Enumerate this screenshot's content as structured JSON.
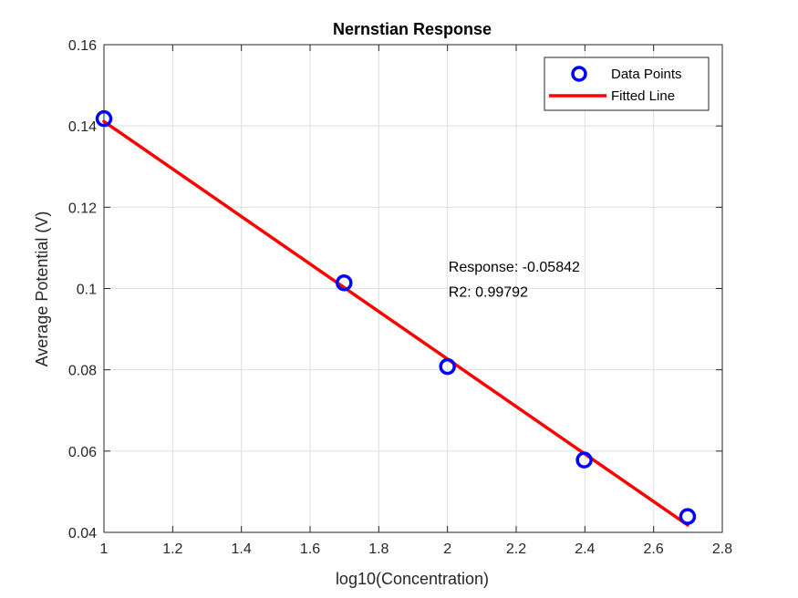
{
  "chart_data": {
    "type": "scatter",
    "title": "Nernstian Response",
    "xlabel": "log10(Concentration)",
    "ylabel": "Average Potential (V)",
    "xlim": [
      1,
      2.8
    ],
    "ylim": [
      0.04,
      0.16
    ],
    "xticks": [
      1,
      1.2,
      1.4,
      1.6,
      1.8,
      2,
      2.2,
      2.4,
      2.6,
      2.8
    ],
    "xtick_labels": [
      "1",
      "1.2",
      "1.4",
      "1.6",
      "1.8",
      "2",
      "2.2",
      "2.4",
      "2.6",
      "2.8"
    ],
    "yticks": [
      0.04,
      0.06,
      0.08,
      0.1,
      0.12,
      0.14,
      0.16
    ],
    "ytick_labels": [
      "0.04",
      "0.06",
      "0.08",
      "0.1",
      "0.12",
      "0.14",
      "0.16"
    ],
    "grid": true,
    "legend_position": "top-right",
    "series": [
      {
        "name": "Data Points",
        "kind": "marker",
        "marker": "circle",
        "color": "#0000FF",
        "x": [
          1,
          1.699,
          2,
          2.398,
          2.699
        ],
        "y": [
          0.1418,
          0.1014,
          0.0808,
          0.0578,
          0.0439
        ]
      },
      {
        "name": "Fitted Line",
        "kind": "line",
        "color": "#FF0000",
        "x": [
          1,
          2.699
        ],
        "y": [
          0.1411,
          0.0418
        ]
      }
    ],
    "annotations": [
      {
        "text": "Response: -0.05842",
        "x": 2.003,
        "y": 0.1041
      },
      {
        "text": "R2: 0.99792",
        "x": 2.003,
        "y": 0.098
      }
    ]
  }
}
